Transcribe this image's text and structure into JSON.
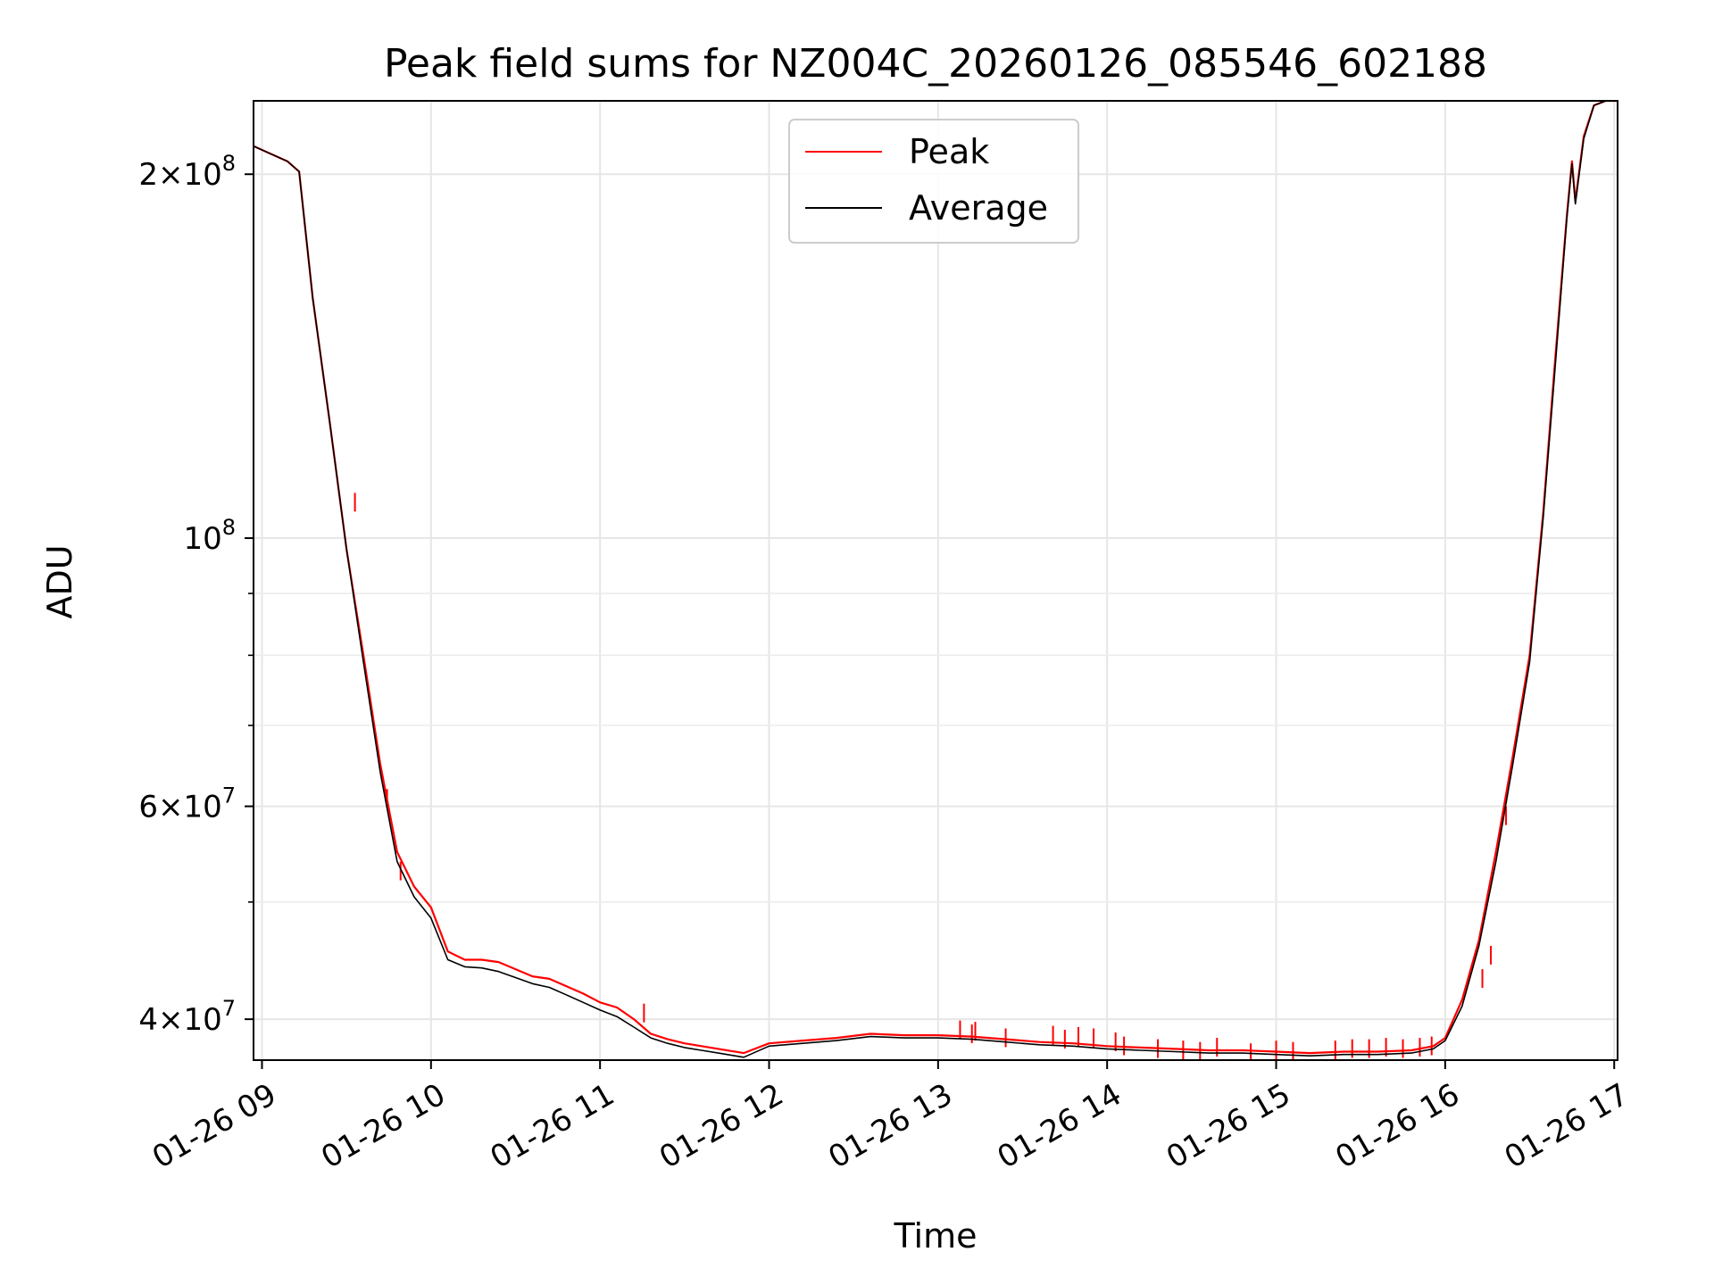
{
  "chart_data": {
    "type": "line",
    "title": "Peak field sums for NZ004C_20260126_085546_602188",
    "xlabel": "Time",
    "ylabel": "ADU",
    "yscale": "log",
    "xlim": [
      8.95,
      17.02
    ],
    "ylim": [
      37000000,
      230000000
    ],
    "grid": true,
    "legend_position": "top-center",
    "x_ticks": [
      {
        "value": 9,
        "label": "01-26 09"
      },
      {
        "value": 10,
        "label": "01-26 10"
      },
      {
        "value": 11,
        "label": "01-26 11"
      },
      {
        "value": 12,
        "label": "01-26 12"
      },
      {
        "value": 13,
        "label": "01-26 13"
      },
      {
        "value": 14,
        "label": "01-26 14"
      },
      {
        "value": 15,
        "label": "01-26 15"
      },
      {
        "value": 16,
        "label": "01-26 16"
      },
      {
        "value": 17,
        "label": "01-26 17"
      }
    ],
    "y_major_ticks": [
      {
        "value": 40000000,
        "mantissa": "4",
        "times": "×",
        "base": "10",
        "exp": "7"
      },
      {
        "value": 60000000,
        "mantissa": "6",
        "times": "×",
        "base": "10",
        "exp": "7"
      },
      {
        "value": 100000000,
        "mantissa": "",
        "times": "",
        "base": "10",
        "exp": "8"
      },
      {
        "value": 200000000,
        "mantissa": "2",
        "times": "×",
        "base": "10",
        "exp": "8"
      }
    ],
    "y_minor_ticks": [
      50000000,
      70000000,
      80000000,
      90000000
    ],
    "series": [
      {
        "name": "Peak",
        "color": "#ff0000",
        "points": [
          [
            8.95,
            211000000
          ],
          [
            9.05,
            208000000
          ],
          [
            9.15,
            205000000
          ],
          [
            9.22,
            201000000
          ],
          [
            9.3,
            158000000
          ],
          [
            9.4,
            125000000
          ],
          [
            9.5,
            98000000
          ],
          [
            9.6,
            80000000
          ],
          [
            9.7,
            65000000
          ],
          [
            9.8,
            55000000
          ],
          [
            9.9,
            51500000
          ],
          [
            10.0,
            49500000
          ],
          [
            10.1,
            45500000
          ],
          [
            10.2,
            44800000
          ],
          [
            10.3,
            44800000
          ],
          [
            10.4,
            44600000
          ],
          [
            10.5,
            44000000
          ],
          [
            10.6,
            43400000
          ],
          [
            10.7,
            43200000
          ],
          [
            10.8,
            42600000
          ],
          [
            10.9,
            42000000
          ],
          [
            11.0,
            41300000
          ],
          [
            11.1,
            40900000
          ],
          [
            11.2,
            40000000
          ],
          [
            11.3,
            38900000
          ],
          [
            11.4,
            38500000
          ],
          [
            11.5,
            38200000
          ],
          [
            11.6,
            38000000
          ],
          [
            11.7,
            37800000
          ],
          [
            11.85,
            37500000
          ],
          [
            12.0,
            38200000
          ],
          [
            12.2,
            38400000
          ],
          [
            12.4,
            38600000
          ],
          [
            12.6,
            38900000
          ],
          [
            12.8,
            38800000
          ],
          [
            13.0,
            38800000
          ],
          [
            13.2,
            38700000
          ],
          [
            13.4,
            38500000
          ],
          [
            13.6,
            38300000
          ],
          [
            13.8,
            38200000
          ],
          [
            14.0,
            38000000
          ],
          [
            14.2,
            37900000
          ],
          [
            14.4,
            37800000
          ],
          [
            14.6,
            37700000
          ],
          [
            14.8,
            37700000
          ],
          [
            15.0,
            37600000
          ],
          [
            15.2,
            37500000
          ],
          [
            15.4,
            37600000
          ],
          [
            15.6,
            37600000
          ],
          [
            15.8,
            37700000
          ],
          [
            15.93,
            38000000
          ],
          [
            16.0,
            38600000
          ],
          [
            16.1,
            41500000
          ],
          [
            16.2,
            46500000
          ],
          [
            16.3,
            55000000
          ],
          [
            16.4,
            66000000
          ],
          [
            16.5,
            80000000
          ],
          [
            16.58,
            105000000
          ],
          [
            16.65,
            140000000
          ],
          [
            16.72,
            185000000
          ],
          [
            16.75,
            205000000
          ],
          [
            16.77,
            190000000
          ],
          [
            16.82,
            215000000
          ],
          [
            16.88,
            228000000
          ],
          [
            16.95,
            230000000
          ],
          [
            17.02,
            230000000
          ]
        ],
        "spikes": [
          [
            9.55,
            109000000
          ],
          [
            9.74,
            62000000
          ],
          [
            9.82,
            54000000
          ],
          [
            11.26,
            41200000
          ],
          [
            13.13,
            39900000
          ],
          [
            13.2,
            39600000
          ],
          [
            13.22,
            39800000
          ],
          [
            13.4,
            39300000
          ],
          [
            13.68,
            39500000
          ],
          [
            13.75,
            39200000
          ],
          [
            13.83,
            39400000
          ],
          [
            13.92,
            39300000
          ],
          [
            14.05,
            39000000
          ],
          [
            14.1,
            38700000
          ],
          [
            14.3,
            38500000
          ],
          [
            14.45,
            38400000
          ],
          [
            14.55,
            38300000
          ],
          [
            14.65,
            38600000
          ],
          [
            14.85,
            38200000
          ],
          [
            15.0,
            38400000
          ],
          [
            15.1,
            38300000
          ],
          [
            15.35,
            38400000
          ],
          [
            15.45,
            38500000
          ],
          [
            15.55,
            38500000
          ],
          [
            15.65,
            38600000
          ],
          [
            15.75,
            38500000
          ],
          [
            15.85,
            38600000
          ],
          [
            15.92,
            38700000
          ],
          [
            16.22,
            44000000
          ],
          [
            16.27,
            46000000
          ],
          [
            16.36,
            60000000
          ]
        ]
      },
      {
        "name": "Average",
        "color": "#000000",
        "points": [
          [
            8.95,
            211000000
          ],
          [
            9.05,
            208000000
          ],
          [
            9.15,
            205000000
          ],
          [
            9.22,
            201000000
          ],
          [
            9.3,
            158000000
          ],
          [
            9.4,
            125000000
          ],
          [
            9.5,
            98000000
          ],
          [
            9.6,
            79000000
          ],
          [
            9.7,
            64000000
          ],
          [
            9.8,
            54000000
          ],
          [
            9.9,
            50500000
          ],
          [
            10.0,
            48500000
          ],
          [
            10.1,
            44800000
          ],
          [
            10.2,
            44200000
          ],
          [
            10.3,
            44100000
          ],
          [
            10.4,
            43800000
          ],
          [
            10.5,
            43300000
          ],
          [
            10.6,
            42800000
          ],
          [
            10.7,
            42500000
          ],
          [
            10.8,
            41900000
          ],
          [
            10.9,
            41300000
          ],
          [
            11.0,
            40700000
          ],
          [
            11.1,
            40200000
          ],
          [
            11.2,
            39400000
          ],
          [
            11.3,
            38600000
          ],
          [
            11.4,
            38200000
          ],
          [
            11.5,
            37900000
          ],
          [
            11.6,
            37700000
          ],
          [
            11.7,
            37500000
          ],
          [
            11.85,
            37200000
          ],
          [
            12.0,
            38000000
          ],
          [
            12.2,
            38200000
          ],
          [
            12.4,
            38400000
          ],
          [
            12.6,
            38700000
          ],
          [
            12.8,
            38600000
          ],
          [
            13.0,
            38600000
          ],
          [
            13.2,
            38500000
          ],
          [
            13.4,
            38300000
          ],
          [
            13.6,
            38100000
          ],
          [
            13.8,
            38000000
          ],
          [
            14.0,
            37800000
          ],
          [
            14.2,
            37700000
          ],
          [
            14.4,
            37600000
          ],
          [
            14.6,
            37500000
          ],
          [
            14.8,
            37500000
          ],
          [
            15.0,
            37400000
          ],
          [
            15.2,
            37300000
          ],
          [
            15.4,
            37400000
          ],
          [
            15.6,
            37400000
          ],
          [
            15.8,
            37500000
          ],
          [
            15.93,
            37800000
          ],
          [
            16.0,
            38400000
          ],
          [
            16.1,
            41000000
          ],
          [
            16.2,
            46000000
          ],
          [
            16.3,
            54000000
          ],
          [
            16.4,
            65000000
          ],
          [
            16.5,
            79000000
          ],
          [
            16.58,
            104000000
          ],
          [
            16.65,
            138000000
          ],
          [
            16.72,
            184000000
          ],
          [
            16.75,
            204000000
          ],
          [
            16.77,
            189000000
          ],
          [
            16.82,
            214000000
          ],
          [
            16.88,
            228000000
          ],
          [
            16.95,
            230000000
          ],
          [
            17.02,
            230000000
          ]
        ]
      }
    ]
  }
}
